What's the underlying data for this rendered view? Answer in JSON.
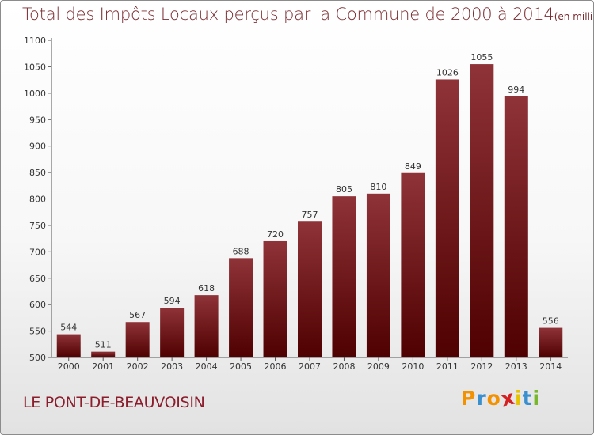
{
  "chart_data": {
    "type": "bar",
    "title": "Total des Impôts Locaux perçus par la Commune de 2000 à 2014",
    "unit_note": "(en milliers d'€)",
    "categories": [
      "2000",
      "2001",
      "2002",
      "2003",
      "2004",
      "2005",
      "2006",
      "2007",
      "2008",
      "2009",
      "2010",
      "2011",
      "2012",
      "2013",
      "2014"
    ],
    "values": [
      544,
      511,
      567,
      594,
      618,
      688,
      720,
      757,
      805,
      810,
      849,
      1026,
      1055,
      994,
      556
    ],
    "ylim": [
      500,
      1100
    ],
    "yticks": [
      500,
      550,
      600,
      650,
      700,
      750,
      800,
      850,
      900,
      950,
      1000,
      1050,
      1100
    ],
    "xlabel": "",
    "ylabel": "",
    "grid": false,
    "bar_color_top": "#8f3338",
    "bar_color_bottom": "#4f0000"
  },
  "commune": "LE PONT-DE-BEAUVOISIN",
  "logo": {
    "letters": [
      "P",
      "r",
      "o",
      "x",
      "i",
      "t",
      "i"
    ],
    "colors": [
      "#f39200",
      "#3a8fcf",
      "#f39200",
      "#d42020",
      "#e6c200",
      "#3a8fcf",
      "#77b82a"
    ]
  }
}
